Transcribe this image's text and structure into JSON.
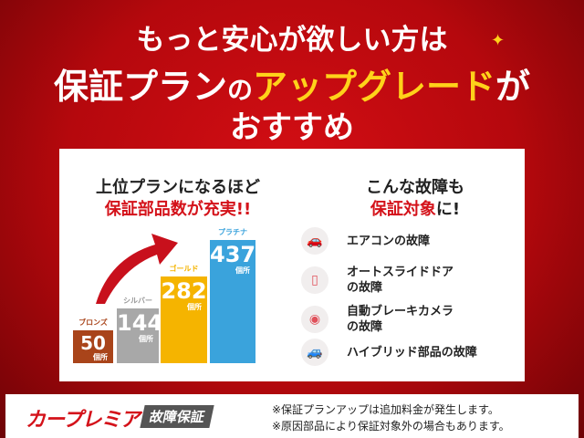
{
  "headline": {
    "line1": "もっと安心が欲しい方は",
    "line2a": "保証プラン",
    "line2b": "の",
    "line2c": "アップグレード",
    "line2d": "が",
    "line3": "おすすめ"
  },
  "left": {
    "title1": "上位プランになるほど",
    "title2": "保証部品数が充実!!",
    "unit": "個所",
    "plans": [
      {
        "name": "ブロンズ",
        "value": 50,
        "color": "#a9441a"
      },
      {
        "name": "シルバー",
        "value": 144,
        "color": "#a8a8a8"
      },
      {
        "name": "ゴールド",
        "value": 282,
        "color": "#f5b400"
      },
      {
        "name": "プラチナ",
        "value": 437,
        "color": "#3aa3dc"
      }
    ]
  },
  "right": {
    "title1": "こんな故障も",
    "title2a": "保証対象",
    "title2b": "に!",
    "items": [
      {
        "icon": "car-aircon-icon",
        "label": "エアコンの故障"
      },
      {
        "icon": "sliding-door-icon",
        "label": "オートスライドドア\nの故障"
      },
      {
        "icon": "brake-camera-icon",
        "label": "自動ブレーキカメラ\nの故障"
      },
      {
        "icon": "hybrid-car-icon",
        "label": "ハイブリッド部品の故障"
      }
    ]
  },
  "footer": {
    "logo": "カープレミア",
    "tag": "故障保証",
    "note1": "※保証プランアップは追加料金が発生します。",
    "note2": "※原因部品により保証対象外の場合もあります。"
  }
}
